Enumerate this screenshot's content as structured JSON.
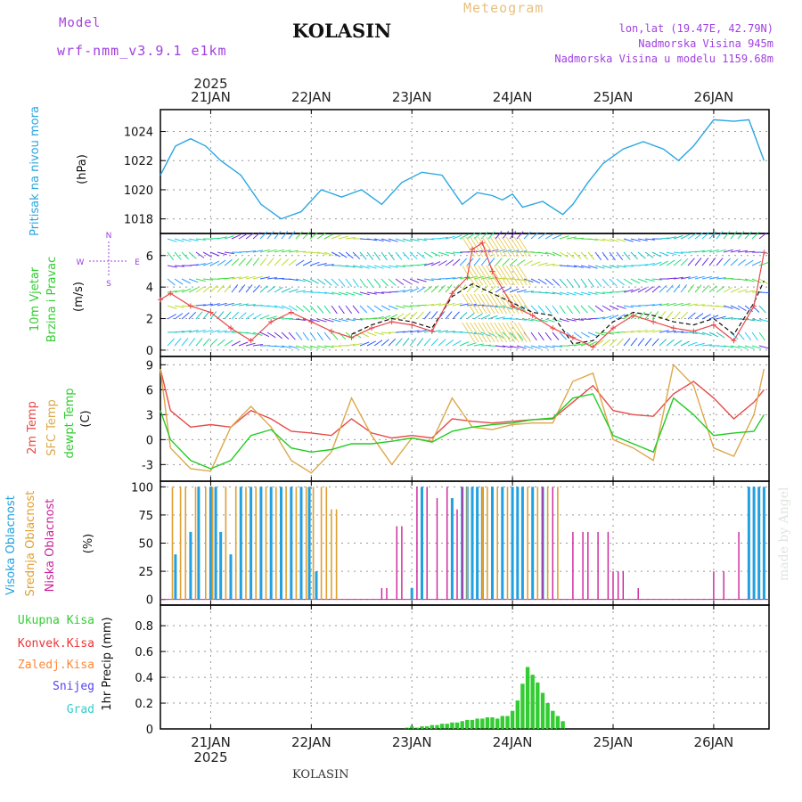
{
  "header": {
    "model_label": "Model",
    "model_name": "wrf-nmm_v3.9.1 e1km",
    "station": "KOLASIN",
    "meteogram": "Meteogram",
    "lonlat": "lon,lat (19.47E, 42.79N)",
    "elevation": "Nadmorska Visina 945m",
    "model_elevation": "Nadmorska Visina u modelu 1159.68m",
    "credit": "made by Angel",
    "footer_station": "KOLASIN"
  },
  "time_axis": {
    "year": "2025",
    "days": [
      "21JAN",
      "22JAN",
      "23JAN",
      "24JAN",
      "25JAN",
      "26JAN"
    ]
  },
  "colors": {
    "pressure": "#2aa6e0",
    "temp2m": "#e84a4a",
    "sfc": "#dca84a",
    "dewpt": "#22cc22",
    "high": "#22a0e0",
    "mid": "#e0a030",
    "low": "#cc2299",
    "total": "#33cc33",
    "conv": "#ee3333",
    "frozen": "#ff8833",
    "snow": "#5544ee",
    "grad": "#33cccc",
    "purple": "#a040e0"
  },
  "chart_data": [
    {
      "type": "line",
      "ylabel": [
        "Pritisak na nivou mora",
        "(hPa)"
      ],
      "yticks": [
        1018,
        1020,
        1022,
        1024
      ],
      "ylim": [
        1017,
        1025.5
      ],
      "series": [
        {
          "name": "Pritisak na nivou mora",
          "x": [
            20.5,
            20.65,
            20.8,
            20.95,
            21.1,
            21.3,
            21.5,
            21.7,
            21.9,
            22.1,
            22.3,
            22.5,
            22.7,
            22.9,
            23.1,
            23.3,
            23.5,
            23.65,
            23.8,
            23.9,
            24.0,
            24.1,
            24.3,
            24.5,
            24.6,
            24.75,
            24.9,
            25.1,
            25.3,
            25.5,
            25.65,
            25.8,
            26.0,
            26.2,
            26.35,
            26.5
          ],
          "values": [
            1021,
            1023,
            1023.5,
            1023,
            1022,
            1021,
            1019,
            1018,
            1018.5,
            1020,
            1019.5,
            1020,
            1019,
            1020.5,
            1021.2,
            1021,
            1019,
            1019.8,
            1019.6,
            1019.3,
            1019.7,
            1018.8,
            1019.2,
            1018.3,
            1019,
            1020.5,
            1021.8,
            1022.8,
            1023.3,
            1022.8,
            1022,
            1023,
            1024.8,
            1024.7,
            1024.8,
            1022
          ]
        }
      ]
    },
    {
      "type": "line",
      "ylabel": [
        "10m Vjetar",
        "Brzina i Pravac",
        "(m/s)"
      ],
      "compass": [
        "N",
        "W",
        "E",
        "S"
      ],
      "yticks": [
        0,
        2,
        4,
        6
      ],
      "ylim": [
        -0.4,
        7.4
      ],
      "series": [
        {
          "name": "Brzina",
          "x": [
            20.5,
            20.6,
            20.8,
            21.0,
            21.2,
            21.4,
            21.6,
            21.8,
            22.0,
            22.2,
            22.4,
            22.6,
            22.8,
            23.0,
            23.2,
            23.4,
            23.55,
            23.6,
            23.7,
            23.8,
            24.0,
            24.2,
            24.4,
            24.6,
            24.8,
            25.0,
            25.2,
            25.4,
            25.6,
            25.8,
            26.0,
            26.2,
            26.4,
            26.5
          ],
          "values": [
            3.2,
            3.6,
            2.8,
            2.4,
            1.4,
            0.6,
            1.8,
            2.4,
            1.8,
            1.2,
            0.8,
            1.4,
            1.8,
            1.6,
            1.2,
            3.6,
            4.6,
            6.4,
            6.8,
            5,
            2.8,
            2.2,
            1.4,
            0.8,
            0.2,
            1.4,
            2.2,
            1.8,
            1.4,
            1.2,
            1.6,
            0.6,
            2.8,
            6.2
          ]
        },
        {
          "name": "Udari",
          "x": [
            22.4,
            22.6,
            22.8,
            23.0,
            23.2,
            23.4,
            23.6,
            23.8,
            24.0,
            24.2,
            24.4,
            24.6,
            24.8,
            25.0,
            25.2,
            25.4,
            25.6,
            25.8,
            26.0,
            26.2,
            26.4,
            26.5
          ],
          "values": [
            1.0,
            1.6,
            2.0,
            1.8,
            1.4,
            3.4,
            4.2,
            3.6,
            3.0,
            2.4,
            2.2,
            0.4,
            0.6,
            1.8,
            2.4,
            2.2,
            1.8,
            1.6,
            2.0,
            1.0,
            3.0,
            4.4
          ]
        }
      ]
    },
    {
      "type": "line",
      "ylabel": [
        "2m Temp",
        "SFC Temp",
        "dewpt Temp",
        "(C)"
      ],
      "yticks": [
        -3,
        0,
        3,
        6,
        9
      ],
      "ylim": [
        -5,
        10
      ],
      "series": [
        {
          "name": "2m Temp",
          "x": [
            20.5,
            20.6,
            20.8,
            21.0,
            21.2,
            21.4,
            21.6,
            21.8,
            22.0,
            22.2,
            22.4,
            22.6,
            22.8,
            23.0,
            23.2,
            23.4,
            23.6,
            23.8,
            24.0,
            24.2,
            24.4,
            24.6,
            24.8,
            25.0,
            25.2,
            25.4,
            25.6,
            25.8,
            26.0,
            26.2,
            26.4,
            26.5
          ],
          "values": [
            8.5,
            3.5,
            1.5,
            1.8,
            1.5,
            3.5,
            2.5,
            1.0,
            0.8,
            0.5,
            2.5,
            0.8,
            0.2,
            0.5,
            0.2,
            2.5,
            2.2,
            2.0,
            2.2,
            2.4,
            2.5,
            4.5,
            6.5,
            3.5,
            3.0,
            2.8,
            5.5,
            7.0,
            5.0,
            2.5,
            4.5,
            6.0
          ]
        },
        {
          "name": "SFC Temp",
          "x": [
            20.5,
            20.6,
            20.8,
            21.0,
            21.2,
            21.4,
            21.6,
            21.8,
            22.0,
            22.2,
            22.4,
            22.6,
            22.8,
            23.0,
            23.2,
            23.4,
            23.6,
            23.8,
            24.0,
            24.2,
            24.4,
            24.6,
            24.8,
            25.0,
            25.2,
            25.4,
            25.6,
            25.8,
            26.0,
            26.2,
            26.4,
            26.5
          ],
          "values": [
            8.5,
            -1.0,
            -3.5,
            -3.8,
            1.5,
            4.0,
            1.5,
            -2.5,
            -4.0,
            -1.5,
            5.0,
            0.5,
            -3.0,
            0.2,
            -0.2,
            5.0,
            1.5,
            1.2,
            1.8,
            2.0,
            2.0,
            7.0,
            8.0,
            0.0,
            -1.0,
            -2.5,
            9.0,
            6.5,
            -1.0,
            -2.0,
            3.0,
            8.5
          ]
        },
        {
          "name": "dewpt Temp",
          "x": [
            20.5,
            20.6,
            20.8,
            21.0,
            21.2,
            21.4,
            21.6,
            21.8,
            22.0,
            22.2,
            22.4,
            22.6,
            22.8,
            23.0,
            23.2,
            23.4,
            23.6,
            23.8,
            24.0,
            24.2,
            24.4,
            24.6,
            24.8,
            25.0,
            25.2,
            25.4,
            25.6,
            25.8,
            26.0,
            26.2,
            26.4,
            26.5
          ],
          "values": [
            3.5,
            0.0,
            -2.5,
            -3.5,
            -2.5,
            0.5,
            1.2,
            -1.0,
            -1.5,
            -1.2,
            -0.5,
            -0.5,
            -0.2,
            0.2,
            -0.3,
            1.0,
            1.5,
            1.8,
            2.0,
            2.4,
            2.6,
            5.0,
            5.5,
            0.5,
            -0.5,
            -1.5,
            5.0,
            3.0,
            0.5,
            0.8,
            1.0,
            3.0
          ]
        }
      ]
    },
    {
      "type": "bar",
      "ylabel": [
        "Visoka Oblacnost",
        "Srednja Oblacnost",
        "Niska Oblacnost",
        "(%)"
      ],
      "yticks": [
        0,
        25,
        50,
        75,
        100
      ],
      "ylim": [
        -5,
        105
      ],
      "series": [
        {
          "name": "Visoka Oblacnost",
          "x": [
            20.65,
            20.8,
            20.88,
            21.0,
            21.05,
            21.1,
            21.2,
            21.3,
            21.4,
            21.5,
            21.6,
            21.7,
            21.8,
            21.9,
            21.98,
            22.05,
            23.0,
            23.1,
            23.4,
            23.5,
            23.55,
            23.6,
            23.65,
            23.7,
            23.8,
            23.9,
            24.0,
            24.05,
            24.1,
            24.2,
            24.3,
            26.35,
            26.4,
            26.45,
            26.5
          ],
          "values": [
            40,
            60,
            100,
            100,
            100,
            60,
            40,
            100,
            100,
            100,
            100,
            100,
            100,
            100,
            100,
            25,
            10,
            100,
            90,
            100,
            100,
            100,
            100,
            100,
            100,
            100,
            100,
            100,
            100,
            100,
            100,
            100,
            100,
            100,
            100
          ]
        },
        {
          "name": "Srednja Oblacnost",
          "x": [
            20.62,
            20.7,
            20.75,
            20.85,
            20.95,
            21.02,
            21.15,
            21.25,
            21.35,
            21.45,
            21.55,
            21.65,
            21.75,
            21.85,
            21.95,
            22.02,
            22.1,
            22.15,
            22.2,
            22.25,
            23.55,
            23.7,
            23.75,
            23.85,
            23.95,
            24.15,
            24.25,
            24.35,
            24.45
          ],
          "values": [
            100,
            100,
            100,
            100,
            100,
            100,
            100,
            100,
            100,
            100,
            100,
            100,
            100,
            100,
            100,
            100,
            100,
            100,
            80,
            80,
            100,
            100,
            100,
            100,
            100,
            100,
            100,
            100,
            100
          ]
        },
        {
          "name": "Niska Oblacnost",
          "x": [
            22.7,
            22.75,
            22.85,
            22.9,
            23.05,
            23.15,
            23.25,
            23.35,
            23.45,
            23.5,
            24.3,
            24.4,
            24.6,
            24.7,
            24.75,
            24.85,
            24.95,
            25.0,
            25.05,
            25.1,
            25.25,
            26.0,
            26.1,
            26.25
          ],
          "values": [
            10,
            10,
            65,
            65,
            100,
            100,
            90,
            100,
            80,
            100,
            100,
            100,
            60,
            60,
            60,
            60,
            60,
            25,
            25,
            25,
            10,
            25,
            25,
            60
          ]
        }
      ]
    },
    {
      "type": "bar",
      "ylabel": [
        "Ukupna Kisa",
        "Konvek.Kisa",
        "Zaledj.Kisa",
        "Snijeg",
        "Grad",
        "1hr Precip (mm)"
      ],
      "yticks": [
        0,
        0.2,
        0.4,
        0.6,
        0.8
      ],
      "ylim": [
        0,
        0.96
      ],
      "series": [
        {
          "name": "Ukupna Kisa",
          "x": [
            22.95,
            23.0,
            23.05,
            23.1,
            23.15,
            23.2,
            23.25,
            23.3,
            23.35,
            23.4,
            23.45,
            23.5,
            23.55,
            23.6,
            23.65,
            23.7,
            23.75,
            23.8,
            23.85,
            23.9,
            23.95,
            24.0,
            24.05,
            24.1,
            24.15,
            24.2,
            24.25,
            24.3,
            24.35,
            24.4,
            24.45,
            24.5
          ],
          "values": [
            0.01,
            0.02,
            0.01,
            0.02,
            0.02,
            0.03,
            0.03,
            0.04,
            0.04,
            0.05,
            0.05,
            0.06,
            0.07,
            0.07,
            0.08,
            0.08,
            0.09,
            0.09,
            0.08,
            0.1,
            0.1,
            0.14,
            0.22,
            0.35,
            0.48,
            0.42,
            0.36,
            0.28,
            0.2,
            0.14,
            0.1,
            0.06
          ]
        }
      ]
    }
  ]
}
